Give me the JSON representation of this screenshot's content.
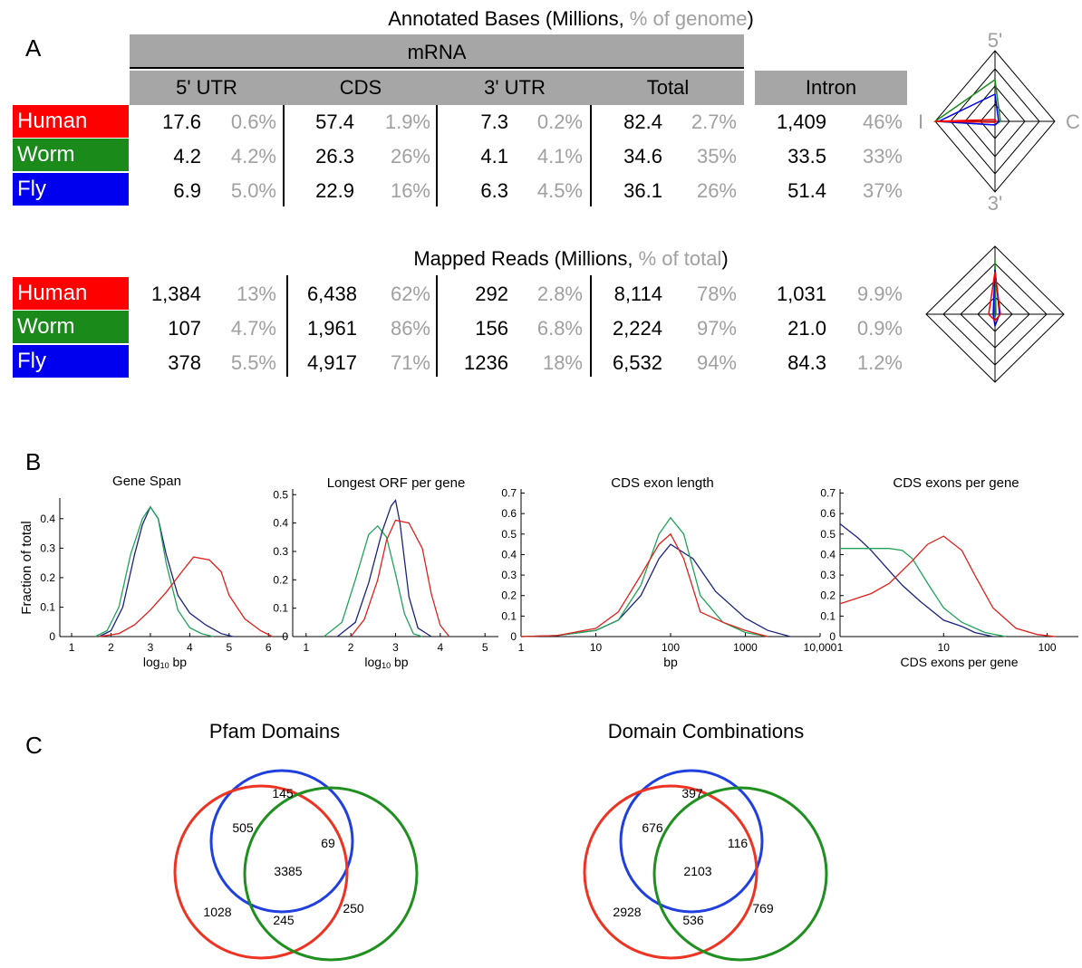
{
  "colors": {
    "human": "#ff0000",
    "worm": "#1a8a1a",
    "fly": "#0000ee",
    "header_gray": "#a6a6a6",
    "pct_gray": "#a0a0a0",
    "venn_red": "#ee3322",
    "venn_green": "#1f8f1f",
    "venn_blue": "#1f3fe0",
    "line_navy": "#1a237e",
    "line_green": "#21a35a",
    "line_red": "#e0201a"
  },
  "panelA": {
    "label": "A",
    "bases_title": {
      "prefix": "Annotated Bases (Millions, ",
      "gray": "% of genome",
      "suffix": ")"
    },
    "reads_title": {
      "prefix": "Mapped Reads (Millions, ",
      "gray": "% of total",
      "suffix": ")"
    },
    "mrna_header": "mRNA",
    "col_headers": [
      "5' UTR",
      "CDS",
      "3' UTR",
      "Total"
    ],
    "intron_header": "Intron",
    "species": [
      "Human",
      "Worm",
      "Fly"
    ],
    "bases_rows": [
      [
        [
          "17.6",
          "0.6%"
        ],
        [
          "57.4",
          "1.9%"
        ],
        [
          "7.3",
          "0.2%"
        ],
        [
          "82.4",
          "2.7%"
        ],
        [
          "1,409",
          "46%"
        ]
      ],
      [
        [
          "4.2",
          "4.2%"
        ],
        [
          "26.3",
          "26%"
        ],
        [
          "4.1",
          "4.1%"
        ],
        [
          "34.6",
          "35%"
        ],
        [
          "33.5",
          "33%"
        ]
      ],
      [
        [
          "6.9",
          "5.0%"
        ],
        [
          "22.9",
          "16%"
        ],
        [
          "6.3",
          "4.5%"
        ],
        [
          "36.1",
          "26%"
        ],
        [
          "51.4",
          "37%"
        ]
      ]
    ],
    "reads_rows": [
      [
        [
          "1,384",
          "13%"
        ],
        [
          "6,438",
          "62%"
        ],
        [
          "292",
          "2.8%"
        ],
        [
          "8,114",
          "78%"
        ],
        [
          "1,031",
          "9.9%"
        ]
      ],
      [
        [
          "107",
          "4.7%"
        ],
        [
          "1,961",
          "86%"
        ],
        [
          "156",
          "6.8%"
        ],
        [
          "2,224",
          "97%"
        ],
        [
          "21.0",
          "0.9%"
        ]
      ],
      [
        [
          "378",
          "5.5%"
        ],
        [
          "4,917",
          "71%"
        ],
        [
          "1236",
          "18%"
        ],
        [
          "6,532",
          "94%"
        ],
        [
          "84.3",
          "1.2%"
        ]
      ]
    ],
    "radar_labels": {
      "top": "5'",
      "right": "C",
      "bottom": "3'",
      "left": "I"
    }
  },
  "panelB": {
    "label": "B",
    "ylabel": "Fraction of total",
    "legend_note": "",
    "chart_data": [
      {
        "type": "line",
        "title": "Gene Span",
        "xlabel": "log10 bp",
        "xscale": "linear",
        "xlim": [
          0.7,
          6.5
        ],
        "ylim": [
          0,
          0.47
        ],
        "xticks": [
          "1",
          "2",
          "3",
          "4",
          "5",
          "6"
        ],
        "yticks": [
          "0",
          "0.1",
          "0.2",
          "0.3",
          "0.4"
        ],
        "series": [
          {
            "color": "navy",
            "x": [
              1.7,
              2,
              2.3,
              2.6,
              2.8,
              3,
              3.2,
              3.4,
              3.7,
              4,
              4.4,
              4.8,
              5.1
            ],
            "y": [
              0,
              0.02,
              0.1,
              0.28,
              0.38,
              0.44,
              0.4,
              0.28,
              0.14,
              0.08,
              0.04,
              0.01,
              0
            ]
          },
          {
            "color": "green",
            "x": [
              1.6,
              1.9,
              2.2,
              2.5,
              2.8,
              3,
              3.2,
              3.4,
              3.7,
              4,
              4.3,
              4.6
            ],
            "y": [
              0,
              0.02,
              0.1,
              0.28,
              0.4,
              0.44,
              0.4,
              0.25,
              0.09,
              0.03,
              0.01,
              0
            ]
          },
          {
            "color": "red",
            "x": [
              1.7,
              2.2,
              2.6,
              3,
              3.4,
              3.8,
              4.1,
              4.5,
              4.8,
              5,
              5.4,
              5.8,
              6.1
            ],
            "y": [
              0,
              0.01,
              0.04,
              0.09,
              0.15,
              0.22,
              0.27,
              0.26,
              0.22,
              0.14,
              0.06,
              0.02,
              0
            ]
          }
        ]
      },
      {
        "type": "line",
        "title": "Longest ORF per gene",
        "xlabel": "log10 bp",
        "xscale": "linear",
        "xlim": [
          0.7,
          5.3
        ],
        "ylim": [
          0,
          0.52
        ],
        "xticks": [
          "1",
          "2",
          "3",
          "4",
          "5"
        ],
        "yticks": [
          "0",
          "0.1",
          "0.2",
          "0.3",
          "0.4",
          "0.5"
        ],
        "series": [
          {
            "color": "green",
            "x": [
              1.4,
              1.8,
              2.1,
              2.4,
              2.6,
              2.8,
              3,
              3.2,
              3.4,
              3.6
            ],
            "y": [
              0,
              0.05,
              0.2,
              0.36,
              0.39,
              0.35,
              0.22,
              0.08,
              0.01,
              0
            ]
          },
          {
            "color": "navy",
            "x": [
              1.7,
              2.1,
              2.4,
              2.7,
              2.9,
              3,
              3.1,
              3.3,
              3.5,
              3.8
            ],
            "y": [
              0,
              0.05,
              0.19,
              0.37,
              0.46,
              0.48,
              0.4,
              0.14,
              0.03,
              0
            ]
          },
          {
            "color": "red",
            "x": [
              2,
              2.3,
              2.6,
              2.8,
              3,
              3.3,
              3.6,
              3.8,
              4,
              4.2
            ],
            "y": [
              0,
              0.06,
              0.2,
              0.34,
              0.41,
              0.4,
              0.31,
              0.15,
              0.04,
              0
            ]
          }
        ]
      },
      {
        "type": "line",
        "title": "CDS exon length",
        "xlabel": "bp",
        "xscale": "log",
        "xlim": [
          1,
          10000
        ],
        "ylim": [
          0,
          0.72
        ],
        "xticks": [
          "1",
          "10",
          "100",
          "1000",
          "10,000"
        ],
        "yticks": [
          "0",
          "0.1",
          "0.2",
          "0.3",
          "0.4",
          "0.5",
          "0.6",
          "0.7"
        ],
        "series": [
          {
            "color": "navy",
            "x": [
              1,
              3,
              10,
              20,
              40,
              70,
              100,
              200,
              400,
              1000,
              2000,
              4000
            ],
            "y": [
              0,
              0.005,
              0.03,
              0.08,
              0.2,
              0.38,
              0.45,
              0.38,
              0.22,
              0.09,
              0.03,
              0
            ]
          },
          {
            "color": "green",
            "x": [
              1,
              3,
              10,
              20,
              40,
              70,
              100,
              150,
              250,
              500,
              1000,
              2000
            ],
            "y": [
              0,
              0.005,
              0.03,
              0.08,
              0.25,
              0.5,
              0.58,
              0.5,
              0.2,
              0.07,
              0.02,
              0
            ]
          },
          {
            "color": "red",
            "x": [
              1,
              3,
              10,
              20,
              40,
              70,
              100,
              150,
              250,
              500,
              1000,
              2000
            ],
            "y": [
              0,
              0.005,
              0.04,
              0.12,
              0.3,
              0.45,
              0.5,
              0.38,
              0.12,
              0.07,
              0.03,
              0
            ]
          }
        ]
      },
      {
        "type": "line",
        "title": "CDS exons per gene",
        "xlabel": "CDS exons per gene",
        "xscale": "log",
        "xlim": [
          1,
          200
        ],
        "ylim": [
          0,
          0.72
        ],
        "xticks": [
          "1",
          "10",
          "100"
        ],
        "yticks": [
          "0",
          "0.1",
          "0.2",
          "0.3",
          "0.4",
          "0.5",
          "0.6",
          "0.7"
        ],
        "series": [
          {
            "color": "navy",
            "x": [
              1,
              1.5,
              2,
              3,
              4,
              6,
              10,
              15,
              20,
              30
            ],
            "y": [
              0.55,
              0.48,
              0.42,
              0.32,
              0.25,
              0.17,
              0.08,
              0.05,
              0.02,
              0
            ]
          },
          {
            "color": "green",
            "x": [
              1,
              2,
              3,
              4,
              5,
              7,
              10,
              15,
              25,
              40
            ],
            "y": [
              0.43,
              0.43,
              0.43,
              0.42,
              0.38,
              0.26,
              0.14,
              0.07,
              0.02,
              0
            ]
          },
          {
            "color": "red",
            "x": [
              1,
              2,
              3,
              5,
              7,
              10,
              15,
              20,
              30,
              50,
              80,
              120
            ],
            "y": [
              0.16,
              0.21,
              0.26,
              0.37,
              0.45,
              0.49,
              0.42,
              0.3,
              0.14,
              0.04,
              0.01,
              0
            ]
          }
        ]
      }
    ]
  },
  "panelC": {
    "label": "C",
    "venns": [
      {
        "title": "Pfam Domains",
        "values": {
          "blue_only": "145",
          "red_blue": "505",
          "blue_green": "69",
          "center": "3385",
          "red_only": "1028",
          "red_green": "245",
          "green_only": "250"
        }
      },
      {
        "title": "Domain Combinations",
        "values": {
          "blue_only": "397",
          "red_blue": "676",
          "blue_green": "116",
          "center": "2103",
          "red_only": "2928",
          "red_green": "536",
          "green_only": "769"
        }
      }
    ]
  }
}
